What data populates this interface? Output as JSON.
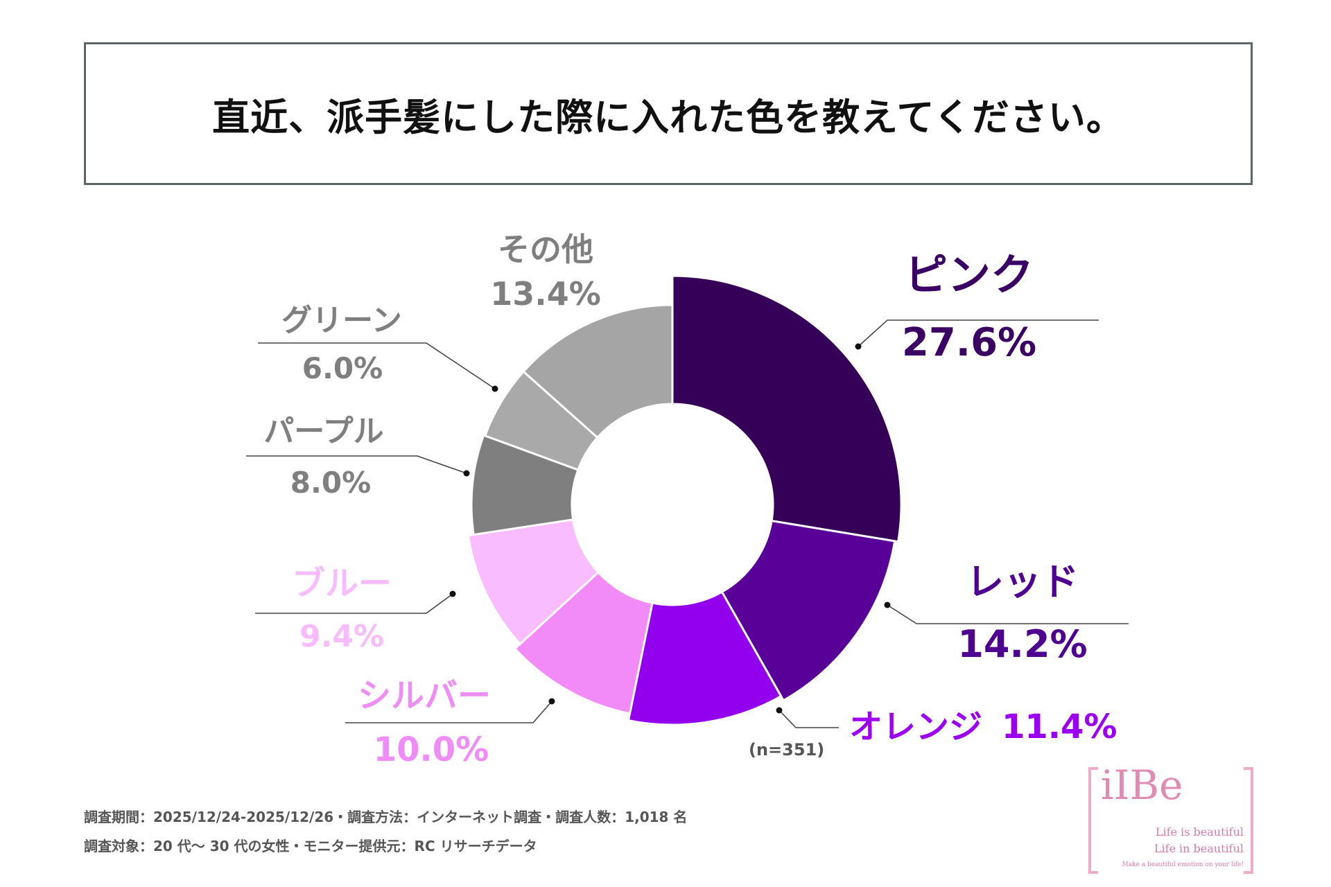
{
  "title": "直近、派手髪にした際に入れた色を教えてください。",
  "chart_data": {
    "type": "donut",
    "title": "直近、派手髪にした際に入れた色を教えてください。",
    "sample_size": "(n=351)",
    "slices": [
      {
        "name": "ピンク",
        "value": 27.6,
        "value_label": "27.6%",
        "color": "#350058"
      },
      {
        "name": "レッド",
        "value": 14.2,
        "value_label": "14.2%",
        "color": "#590098"
      },
      {
        "name": "オレンジ",
        "value": 11.4,
        "value_label": "11.4%",
        "color": "#9200ee"
      },
      {
        "name": "シルバー",
        "value": 10.0,
        "value_label": "10.0%",
        "color": "#f28af8"
      },
      {
        "name": "ブルー",
        "value": 9.4,
        "value_label": "9.4%",
        "color": "#f8bcff"
      },
      {
        "name": "パープル",
        "value": 8.0,
        "value_label": "8.0%",
        "color": "#7f7f7f"
      },
      {
        "name": "グリーン",
        "value": 6.0,
        "value_label": "6.0%",
        "color": "#a9a9a9"
      },
      {
        "name": "その他",
        "value": 13.4,
        "value_label": "13.4%",
        "color": "#a5a5a5"
      }
    ],
    "label_colors": {
      "ピンク": "#3a0064",
      "レッド": "#4e0090",
      "オレンジ": "#9b00f2",
      "シルバー": "#ef8df6",
      "ブルー": "#f7bcff",
      "パープル": "#7f7f7f",
      "グリーン": "#7f7f7f",
      "その他": "#7f7f7f"
    }
  },
  "footer": {
    "line1": "調査期間：2025/12/24-2025/12/26・調査方法：インターネット調査・調査人数：1,018 名",
    "line2": "調査対象：20 代〜 30 代の女性・モニター提供元：RC リサーチデータ"
  },
  "logo": {
    "name": "iIBe",
    "line1": "Life is beautiful",
    "line2": "Life in beautiful",
    "line3": "Make a beautiful emotion on your life!"
  }
}
